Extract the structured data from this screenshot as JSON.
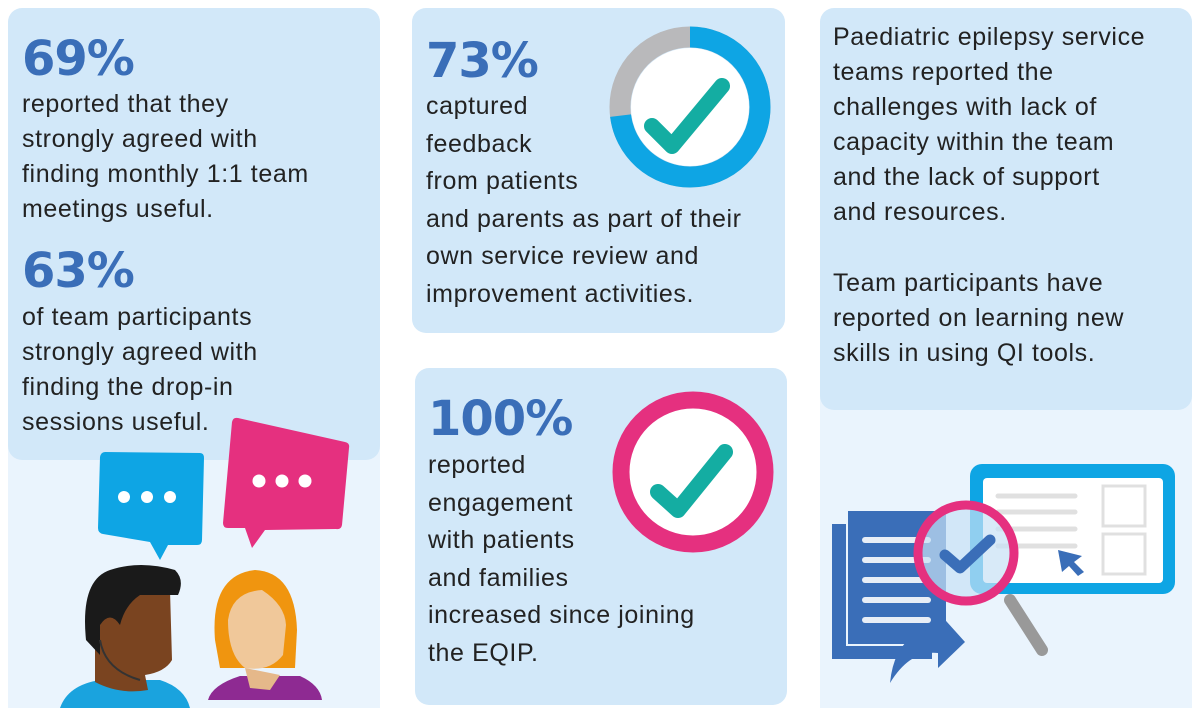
{
  "colors": {
    "card": "#d2e8f9",
    "pale": "#eaf4fd",
    "stat": "#3a6eb8",
    "ring_blue": "#0ea5e4",
    "ring_gray": "#b9b9bb",
    "ring_pink": "#e5307f",
    "check_teal": "#14ada2"
  },
  "stat1": {
    "value": "69%",
    "lines": [
      "reported that they",
      "strongly agreed with",
      "finding monthly 1:1 team",
      "meetings useful."
    ]
  },
  "stat2": {
    "value": "63%",
    "lines": [
      "of team participants",
      "strongly agreed with",
      "finding the drop-in",
      "sessions useful."
    ]
  },
  "stat3": {
    "value": "73%",
    "percent": 73,
    "lines": [
      "captured",
      "feedback",
      "from patients",
      "and parents as part of their",
      "own service review and",
      "improvement activities."
    ]
  },
  "stat4": {
    "value": "100%",
    "percent": 100,
    "lines": [
      "reported",
      "engagement",
      "with patients",
      "and families",
      "increased since joining",
      "the EQIP."
    ]
  },
  "summary": {
    "para1": [
      "Paediatric epilepsy service",
      "teams reported the",
      "challenges with lack of",
      "capacity within the team",
      "and the lack of support",
      "and resources."
    ],
    "para2": [
      "Team participants have",
      "reported on learning new",
      "skills in using QI tools."
    ]
  },
  "icons": [
    "speech-bubble-icon",
    "person-man-icon",
    "person-woman-icon",
    "donut-progress-icon",
    "checkmark-icon",
    "document-icon",
    "magnifier-icon",
    "screen-form-icon",
    "cursor-arrow-icon",
    "share-arrow-icon"
  ]
}
